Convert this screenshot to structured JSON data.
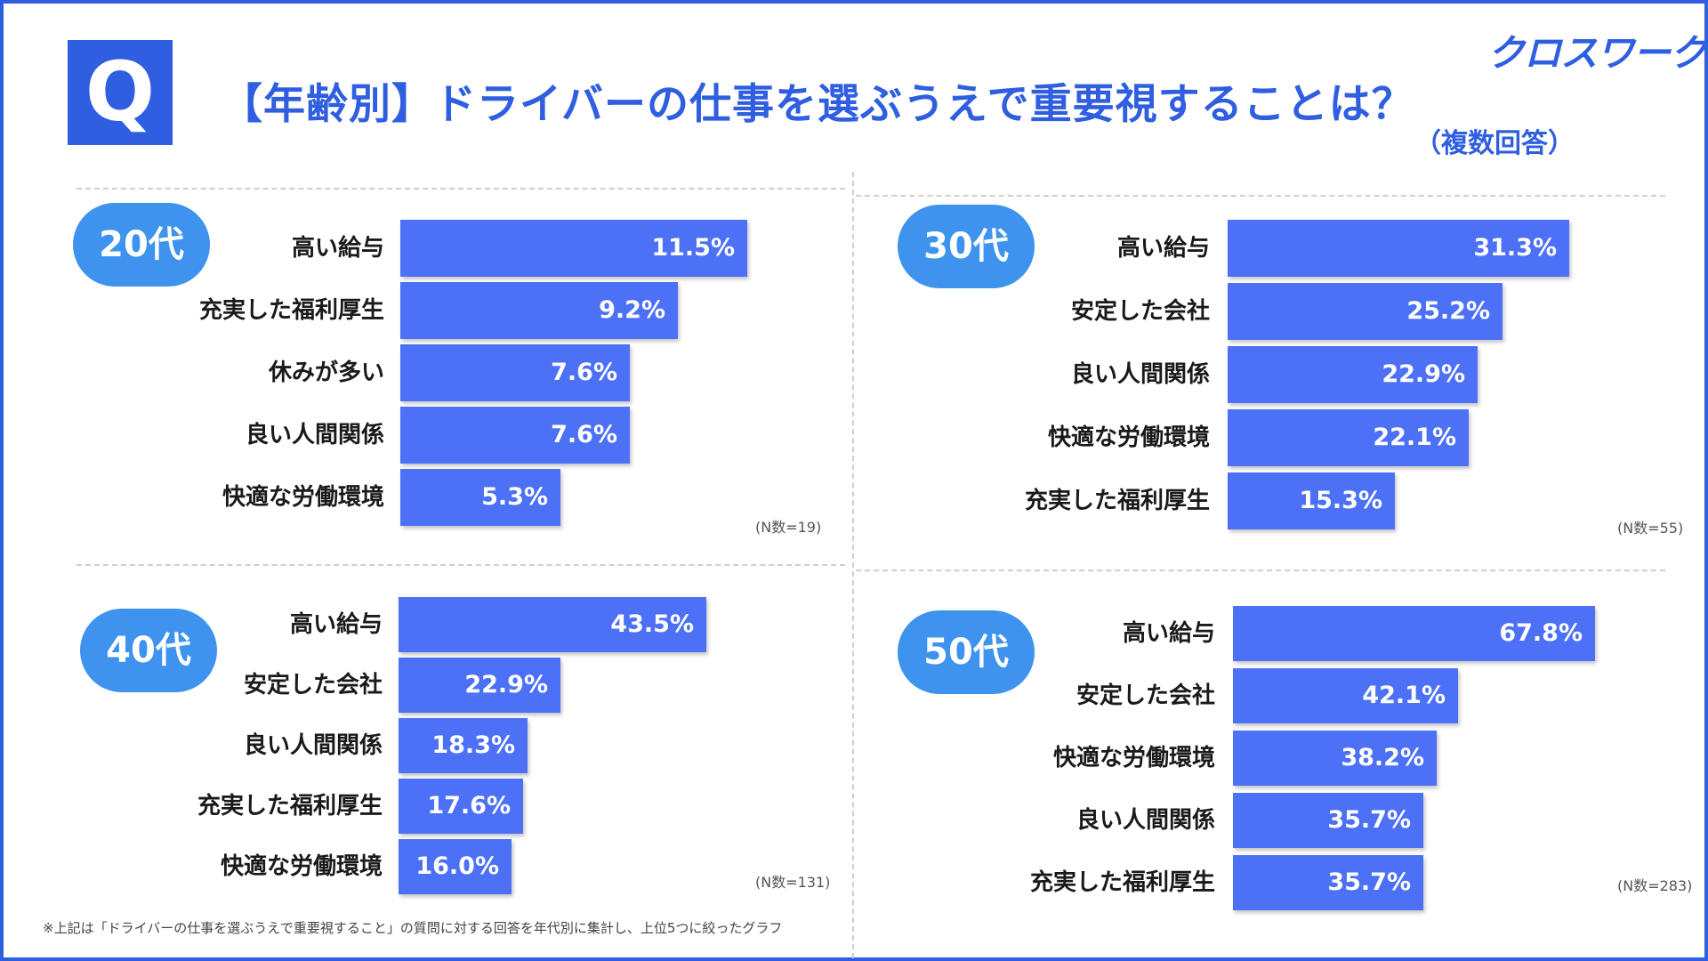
{
  "header": {
    "q_label": "Q",
    "title": "【年齢別】ドライバーの仕事を選ぶうえで重要視することは？",
    "subtitle": "（複数回答）",
    "logo": "クロスワーク"
  },
  "footnote": "※上記は「ドライバーの仕事を選ぶうえで重要視すること」の質問に対する回答を年代別に集計し、上位5つに絞ったグラフ",
  "colors": {
    "accent": "#2f5fe0",
    "bar": "#4d71f6",
    "badge": "#3d93ee"
  },
  "chart_data": [
    {
      "type": "bar",
      "orientation": "horizontal",
      "title": "20代",
      "n_label": "(N数=19)",
      "unit": "%",
      "categories": [
        "高い給与",
        "充実した福利厚生",
        "休みが多い",
        "良い人間関係",
        "快適な労働環境"
      ],
      "values": [
        11.5,
        9.2,
        7.6,
        7.6,
        5.3
      ],
      "value_labels": [
        "11.5%",
        "9.2%",
        "7.6%",
        "7.6%",
        "5.3%"
      ]
    },
    {
      "type": "bar",
      "orientation": "horizontal",
      "title": "30代",
      "n_label": "(N数=55)",
      "unit": "%",
      "categories": [
        "高い給与",
        "安定した会社",
        "良い人間関係",
        "快適な労働環境",
        "充実した福利厚生"
      ],
      "values": [
        31.3,
        25.2,
        22.9,
        22.1,
        15.3
      ],
      "value_labels": [
        "31.3%",
        "25.2%",
        "22.9%",
        "22.1%",
        "15.3%"
      ]
    },
    {
      "type": "bar",
      "orientation": "horizontal",
      "title": "40代",
      "n_label": "(N数=131)",
      "unit": "%",
      "categories": [
        "高い給与",
        "安定した会社",
        "良い人間関係",
        "充実した福利厚生",
        "快適な労働環境"
      ],
      "values": [
        43.5,
        22.9,
        18.3,
        17.6,
        16.0
      ],
      "value_labels": [
        "43.5%",
        "22.9%",
        "18.3%",
        "17.6%",
        "16.0%"
      ]
    },
    {
      "type": "bar",
      "orientation": "horizontal",
      "title": "50代",
      "n_label": "(N数=283)",
      "unit": "%",
      "categories": [
        "高い給与",
        "安定した会社",
        "快適な労働環境",
        "良い人間関係",
        "充実した福利厚生"
      ],
      "values": [
        67.8,
        42.1,
        38.2,
        35.7,
        35.7
      ],
      "value_labels": [
        "67.8%",
        "42.1%",
        "38.2%",
        "35.7%",
        "35.7%"
      ]
    }
  ]
}
